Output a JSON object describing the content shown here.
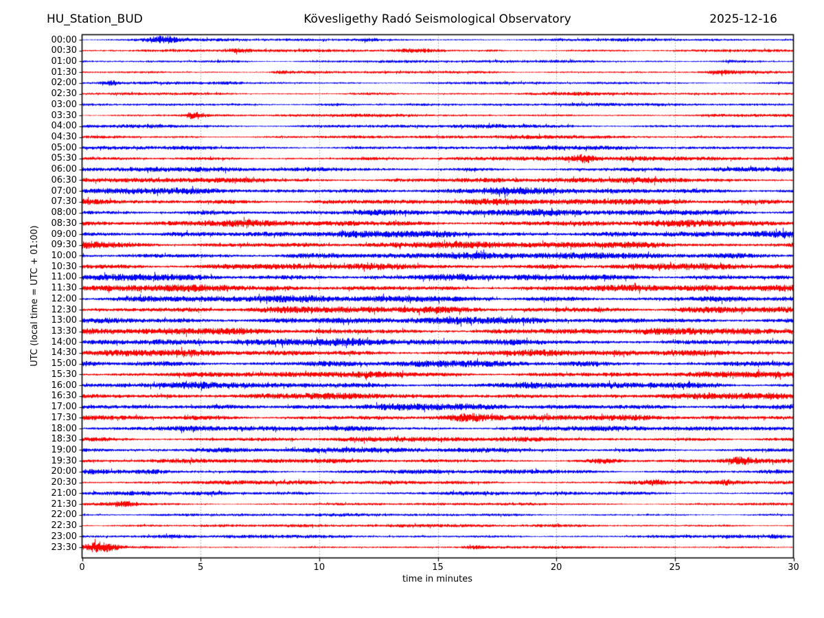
{
  "chart_data": {
    "type": "line",
    "subtype": "helicorder-dayplot",
    "station_label": "HU_Station_BUD",
    "title": "Kövesligethy Radó Seismological Observatory",
    "date": "2025-12-16",
    "xlabel": "time in minutes",
    "ylabel": "UTC (local time = UTC + 01:00)",
    "xlim": [
      0,
      30
    ],
    "x_ticks": [
      "0",
      "5",
      "10",
      "15",
      "20",
      "25",
      "30"
    ],
    "x_tick_minutes": [
      0,
      5,
      10,
      15,
      20,
      25,
      30
    ],
    "minutes_per_line": 30,
    "grid": {
      "vertical_dotted": true,
      "interval_minutes": 5,
      "color": "#666666"
    },
    "colors": {
      "even_trace": "#0000ff",
      "odd_trace": "#ff0000",
      "axis": "#000000"
    },
    "legend": "none",
    "traces": [
      {
        "time": "00:00",
        "color": "#0000ff",
        "amp": 1.9,
        "events": [
          {
            "minute": 3.4,
            "width_min": 0.5,
            "gain": 3.6
          },
          {
            "minute": 12.0,
            "width_min": 0.4,
            "gain": 1.6
          }
        ]
      },
      {
        "time": "00:30",
        "color": "#ff0000",
        "amp": 1.9,
        "events": [
          {
            "minute": 6.5,
            "width_min": 0.4,
            "gain": 2.2
          },
          {
            "minute": 13.8,
            "width_min": 0.6,
            "gain": 2.4
          },
          {
            "minute": 17.3,
            "width_min": 0.3,
            "gain": 2.0
          }
        ]
      },
      {
        "time": "01:00",
        "color": "#0000ff",
        "amp": 1.9,
        "events": [
          {
            "minute": 5.8,
            "width_min": 0.8,
            "gain": 1.6
          },
          {
            "minute": 27.5,
            "width_min": 0.4,
            "gain": 1.5
          }
        ]
      },
      {
        "time": "01:30",
        "color": "#ff0000",
        "amp": 1.8,
        "events": [
          {
            "minute": 8.4,
            "width_min": 0.3,
            "gain": 2.3
          },
          {
            "minute": 27.0,
            "width_min": 0.4,
            "gain": 1.7
          }
        ]
      },
      {
        "time": "02:00",
        "color": "#0000ff",
        "amp": 1.8,
        "events": [
          {
            "minute": 1.2,
            "width_min": 0.3,
            "gain": 2.2
          },
          {
            "minute": 6.3,
            "width_min": 0.5,
            "gain": 2.0
          }
        ]
      },
      {
        "time": "02:30",
        "color": "#ff0000",
        "amp": 1.8,
        "events": [
          {
            "minute": 12.0,
            "width_min": 0.6,
            "gain": 1.5
          },
          {
            "minute": 21.0,
            "width_min": 0.5,
            "gain": 1.4
          }
        ]
      },
      {
        "time": "03:00",
        "color": "#0000ff",
        "amp": 2.0,
        "events": [
          {
            "minute": 10.4,
            "width_min": 0.8,
            "gain": 2.3
          }
        ]
      },
      {
        "time": "03:30",
        "color": "#ff0000",
        "amp": 2.0,
        "events": [
          {
            "minute": 4.7,
            "width_min": 0.25,
            "gain": 3.4
          }
        ]
      },
      {
        "time": "04:00",
        "color": "#0000ff",
        "amp": 2.5,
        "events": []
      },
      {
        "time": "04:30",
        "color": "#ff0000",
        "amp": 2.3,
        "events": []
      },
      {
        "time": "05:00",
        "color": "#0000ff",
        "amp": 2.7,
        "events": []
      },
      {
        "time": "05:30",
        "color": "#ff0000",
        "amp": 2.8,
        "events": [
          {
            "minute": 21.2,
            "width_min": 0.4,
            "gain": 3.0
          }
        ]
      },
      {
        "time": "06:00",
        "color": "#0000ff",
        "amp": 3.1,
        "events": []
      },
      {
        "time": "06:30",
        "color": "#ff0000",
        "amp": 3.5,
        "events": []
      },
      {
        "time": "07:00",
        "color": "#0000ff",
        "amp": 3.9,
        "events": [
          {
            "minute": 17.5,
            "width_min": 0.6,
            "gain": 1.4
          }
        ]
      },
      {
        "time": "07:30",
        "color": "#ff0000",
        "amp": 3.9,
        "events": []
      },
      {
        "time": "08:00",
        "color": "#0000ff",
        "amp": 4.1,
        "events": []
      },
      {
        "time": "08:30",
        "color": "#ff0000",
        "amp": 4.1,
        "events": []
      },
      {
        "time": "09:00",
        "color": "#0000ff",
        "amp": 4.4,
        "events": []
      },
      {
        "time": "09:30",
        "color": "#ff0000",
        "amp": 4.3,
        "events": [
          {
            "minute": 0.5,
            "width_min": 0.5,
            "gain": 1.5
          }
        ]
      },
      {
        "time": "10:00",
        "color": "#0000ff",
        "amp": 4.3,
        "events": []
      },
      {
        "time": "10:30",
        "color": "#ff0000",
        "amp": 4.2,
        "events": []
      },
      {
        "time": "11:00",
        "color": "#0000ff",
        "amp": 4.3,
        "events": []
      },
      {
        "time": "11:30",
        "color": "#ff0000",
        "amp": 4.3,
        "events": []
      },
      {
        "time": "12:00",
        "color": "#0000ff",
        "amp": 4.4,
        "events": [
          {
            "minute": 4.5,
            "width_min": 1.0,
            "gain": 1.25
          }
        ]
      },
      {
        "time": "12:30",
        "color": "#ff0000",
        "amp": 4.4,
        "events": [
          {
            "minute": 21.0,
            "width_min": 0.8,
            "gain": 1.35
          }
        ]
      },
      {
        "time": "13:00",
        "color": "#0000ff",
        "amp": 4.5,
        "events": [
          {
            "minute": 5.0,
            "width_min": 1.0,
            "gain": 1.25
          }
        ]
      },
      {
        "time": "13:30",
        "color": "#ff0000",
        "amp": 4.3,
        "events": []
      },
      {
        "time": "14:00",
        "color": "#0000ff",
        "amp": 4.5,
        "events": []
      },
      {
        "time": "14:30",
        "color": "#ff0000",
        "amp": 4.1,
        "events": []
      },
      {
        "time": "15:00",
        "color": "#0000ff",
        "amp": 4.2,
        "events": []
      },
      {
        "time": "15:30",
        "color": "#ff0000",
        "amp": 3.9,
        "events": []
      },
      {
        "time": "16:00",
        "color": "#0000ff",
        "amp": 4.1,
        "events": []
      },
      {
        "time": "16:30",
        "color": "#ff0000",
        "amp": 3.9,
        "events": []
      },
      {
        "time": "17:00",
        "color": "#0000ff",
        "amp": 4.2,
        "events": []
      },
      {
        "time": "17:30",
        "color": "#ff0000",
        "amp": 3.7,
        "events": [
          {
            "minute": 16.2,
            "width_min": 0.5,
            "gain": 1.6
          }
        ]
      },
      {
        "time": "18:00",
        "color": "#0000ff",
        "amp": 3.5,
        "events": []
      },
      {
        "time": "18:30",
        "color": "#ff0000",
        "amp": 3.3,
        "events": []
      },
      {
        "time": "19:00",
        "color": "#0000ff",
        "amp": 3.3,
        "events": [
          {
            "minute": 0.5,
            "width_min": 0.5,
            "gain": 1.4
          }
        ]
      },
      {
        "time": "19:30",
        "color": "#ff0000",
        "amp": 2.9,
        "events": [
          {
            "minute": 22.0,
            "width_min": 0.4,
            "gain": 1.8
          },
          {
            "minute": 27.8,
            "width_min": 0.35,
            "gain": 2.2
          }
        ]
      },
      {
        "time": "20:00",
        "color": "#0000ff",
        "amp": 2.9,
        "events": [
          {
            "minute": 2.8,
            "width_min": 0.5,
            "gain": 1.8
          },
          {
            "minute": 29.2,
            "width_min": 0.4,
            "gain": 1.7
          }
        ]
      },
      {
        "time": "20:30",
        "color": "#ff0000",
        "amp": 2.7,
        "events": [
          {
            "minute": 24.1,
            "width_min": 0.3,
            "gain": 1.8
          },
          {
            "minute": 27.2,
            "width_min": 0.3,
            "gain": 1.7
          }
        ]
      },
      {
        "time": "21:00",
        "color": "#0000ff",
        "amp": 2.5,
        "events": [
          {
            "minute": 5.3,
            "width_min": 0.5,
            "gain": 1.5
          }
        ]
      },
      {
        "time": "21:30",
        "color": "#ff0000",
        "amp": 1.9,
        "events": [
          {
            "minute": 1.8,
            "width_min": 0.4,
            "gain": 2.3
          }
        ]
      },
      {
        "time": "22:00",
        "color": "#0000ff",
        "amp": 1.9,
        "events": []
      },
      {
        "time": "22:30",
        "color": "#ff0000",
        "amp": 2.1,
        "events": [
          {
            "minute": 5.8,
            "width_min": 0.9,
            "gain": 1.8
          }
        ]
      },
      {
        "time": "23:00",
        "color": "#0000ff",
        "amp": 2.1,
        "events": [
          {
            "minute": 4.0,
            "width_min": 0.6,
            "gain": 1.8
          },
          {
            "minute": 29.3,
            "width_min": 0.3,
            "gain": 2.0
          }
        ]
      },
      {
        "time": "23:30",
        "color": "#ff0000",
        "amp": 1.7,
        "events": [
          {
            "minute": 0.8,
            "width_min": 0.45,
            "gain": 4.5
          },
          {
            "minute": 16.5,
            "width_min": 0.3,
            "gain": 1.8
          }
        ]
      }
    ]
  }
}
